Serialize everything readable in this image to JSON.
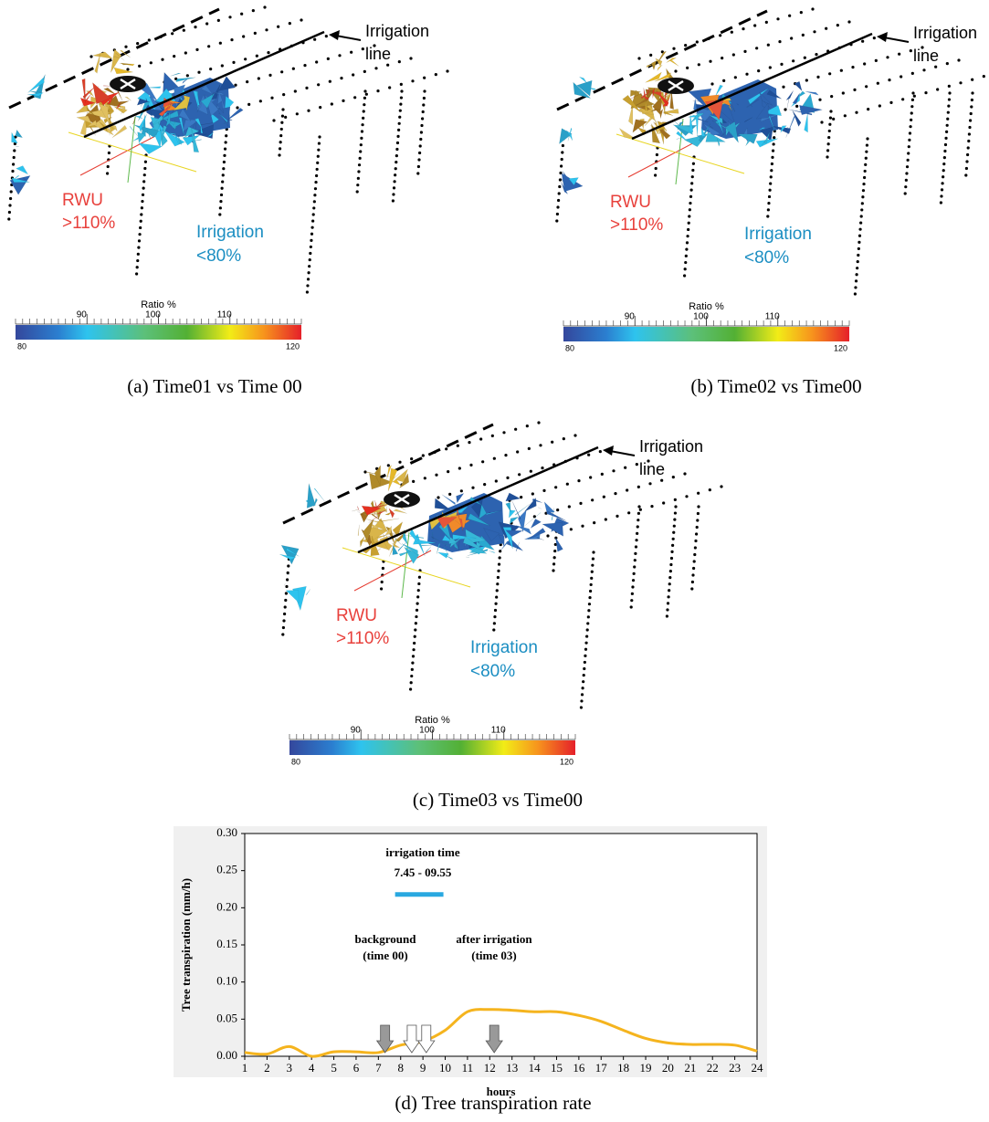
{
  "panels": [
    {
      "caption": "(a) Time01 vs Time 00",
      "arrow_label": [
        "Irrigation",
        "line"
      ],
      "rwu": [
        "RWU",
        ">110%"
      ],
      "irrigation": [
        "Irrigation",
        "<80%"
      ],
      "colorbar": {
        "title": "Ratio %",
        "range": [
          80,
          120
        ],
        "ticks": [
          90,
          100,
          110
        ]
      }
    },
    {
      "caption": "(b) Time02 vs Time00",
      "arrow_label": [
        "Irrigation",
        "line"
      ],
      "rwu": [
        "RWU",
        ">110%"
      ],
      "irrigation": [
        "Irrigation",
        "<80%"
      ],
      "colorbar": {
        "title": "Ratio %",
        "range": [
          80,
          120
        ],
        "ticks": [
          90,
          100,
          110
        ]
      }
    },
    {
      "caption": "(c) Time03 vs Time00",
      "arrow_label": [
        "Irrigation",
        "line"
      ],
      "rwu": [
        "RWU",
        ">110%"
      ],
      "irrigation": [
        "Irrigation",
        "<80%"
      ],
      "colorbar": {
        "title": "Ratio %",
        "range": [
          80,
          120
        ],
        "ticks": [
          90,
          100,
          110
        ]
      }
    }
  ],
  "chart_data": {
    "type": "line",
    "ylabel": "Tree transpiration (mm/h)",
    "xlabel": "hours",
    "x": [
      1,
      2,
      3,
      4,
      5,
      6,
      7,
      8,
      9,
      10,
      11,
      12,
      13,
      14,
      15,
      16,
      17,
      18,
      19,
      20,
      21,
      22,
      23,
      24
    ],
    "values": [
      0.005,
      0.003,
      0.013,
      0.0,
      0.006,
      0.006,
      0.005,
      0.015,
      0.02,
      0.035,
      0.06,
      0.063,
      0.062,
      0.06,
      0.06,
      0.055,
      0.047,
      0.035,
      0.024,
      0.018,
      0.016,
      0.016,
      0.015,
      0.007
    ],
    "color": "#f5b41e",
    "xlim": [
      1,
      24
    ],
    "xticks": [
      1,
      2,
      3,
      4,
      5,
      6,
      7,
      8,
      9,
      10,
      11,
      12,
      13,
      14,
      15,
      16,
      17,
      18,
      19,
      20,
      21,
      22,
      23,
      24
    ],
    "ylim": [
      0,
      0.3
    ],
    "yticks": [
      {
        "value": 0,
        "label": "0.00"
      },
      {
        "value": 0.05,
        "label": "0.05"
      },
      {
        "value": 0.1,
        "label": "0.10"
      },
      {
        "value": 0.15,
        "label": "0.15"
      },
      {
        "value": 0.2,
        "label": "0.20"
      },
      {
        "value": 0.25,
        "label": "0.25"
      },
      {
        "value": 0.3,
        "label": "0.30"
      }
    ],
    "annotations": [
      "irrigation time",
      "7.45 - 09.55",
      "background",
      "(time 00)",
      "after irrigation",
      "(time 03)"
    ],
    "irrigation_bar": {
      "x": [
        7.75,
        9.92
      ],
      "y": 0.218,
      "color": "#29a8e0"
    },
    "arrows": [
      {
        "x": 7.3,
        "fill": "#999999"
      },
      {
        "x": 8.5,
        "fill": "#ffffff"
      },
      {
        "x": 9.15,
        "fill": "#ffffff"
      },
      {
        "x": 12.2,
        "fill": "#999999"
      }
    ]
  },
  "caption": "(d) Tree transpiration rate"
}
